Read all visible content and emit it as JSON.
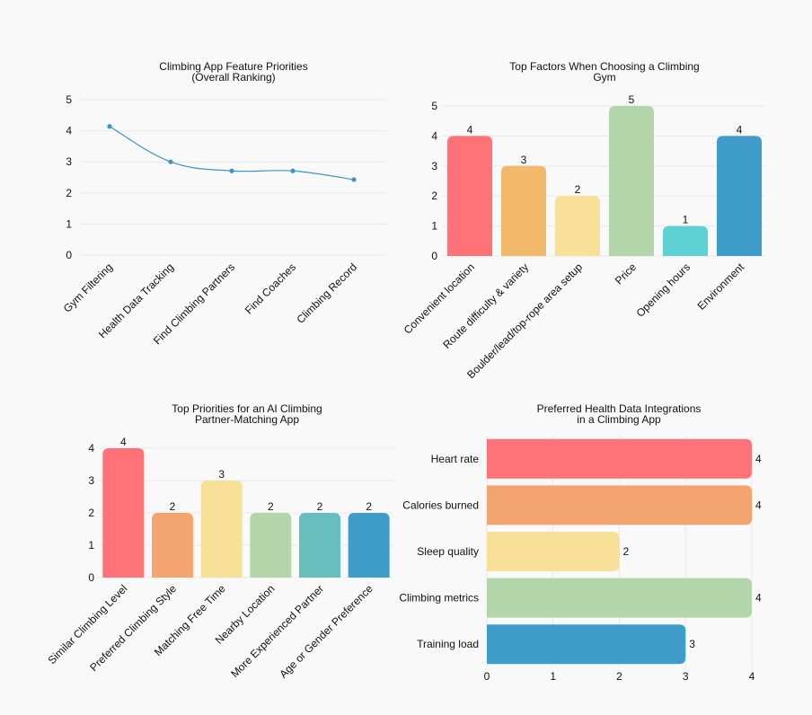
{
  "chart_data": [
    {
      "type": "line",
      "title": [
        "Climbing App Feature Priorities",
        "(Overall Ranking)"
      ],
      "categories": [
        "Gym Filtering",
        "Health Data Tracking",
        "Find Climbing Partners",
        "Find Coaches",
        "Climbing Record"
      ],
      "values": [
        4.14,
        3.0,
        2.71,
        2.71,
        2.43
      ],
      "ylim": [
        0,
        5
      ],
      "yticks": [
        0,
        1,
        2,
        3,
        4,
        5
      ],
      "color": "#3a96c2",
      "grid": true
    },
    {
      "type": "bar",
      "title": [
        "Top Factors When Choosing a Climbing",
        "Gym"
      ],
      "categories": [
        "Convenient location",
        "Route difficulty & variety",
        "Boulder/lead/top-rope area setup",
        "Price",
        "Opening hours",
        "Environment"
      ],
      "values": [
        4,
        3,
        2,
        5,
        1,
        4
      ],
      "colors": [
        "#ff7277",
        "#f2b86c",
        "#f8e098",
        "#b2d6a9",
        "#5dd1d4",
        "#409dc9"
      ],
      "ylim": [
        0,
        5
      ],
      "yticks": [
        0,
        1,
        2,
        3,
        4,
        5
      ],
      "grid": true
    },
    {
      "type": "bar",
      "title": [
        "Top Priorities for an AI Climbing",
        "Partner-Matching App"
      ],
      "categories": [
        "Similar Climbing Level",
        "Preferred Climbing Style",
        "Matching Free Time",
        "Nearby Location",
        "More Experienced Partner",
        "Age or Gender Preference"
      ],
      "values": [
        4,
        2,
        3,
        2,
        2,
        2
      ],
      "colors": [
        "#ff7277",
        "#f3a46f",
        "#f8e098",
        "#b2d6a9",
        "#66bfbd",
        "#409dc9"
      ],
      "ylim": [
        0,
        4
      ],
      "yticks": [
        0,
        1,
        2,
        3,
        4
      ],
      "grid": true
    },
    {
      "type": "bar",
      "orientation": "horizontal",
      "title": [
        "Preferred Health Data Integrations",
        "in a Climbing App"
      ],
      "categories": [
        "Heart rate",
        "Calories burned",
        "Sleep quality",
        "Climbing metrics",
        "Training load"
      ],
      "values": [
        4,
        4,
        2,
        4,
        3
      ],
      "colors": [
        "#ff7277",
        "#f3a46f",
        "#f8e098",
        "#b2d6a9",
        "#409dc9"
      ],
      "xlim": [
        0,
        4
      ],
      "xticks": [
        0,
        1,
        2,
        3,
        4
      ],
      "grid": true
    }
  ]
}
